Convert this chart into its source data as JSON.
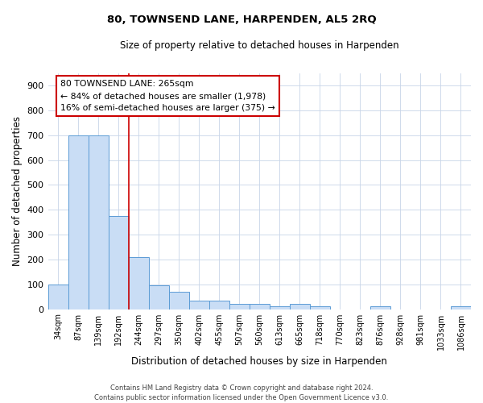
{
  "title": "80, TOWNSEND LANE, HARPENDEN, AL5 2RQ",
  "subtitle": "Size of property relative to detached houses in Harpenden",
  "xlabel": "Distribution of detached houses by size in Harpenden",
  "ylabel": "Number of detached properties",
  "categories": [
    "34sqm",
    "87sqm",
    "139sqm",
    "192sqm",
    "244sqm",
    "297sqm",
    "350sqm",
    "402sqm",
    "455sqm",
    "507sqm",
    "560sqm",
    "613sqm",
    "665sqm",
    "718sqm",
    "770sqm",
    "823sqm",
    "876sqm",
    "928sqm",
    "981sqm",
    "1033sqm",
    "1086sqm"
  ],
  "values": [
    100,
    700,
    700,
    375,
    210,
    95,
    70,
    35,
    35,
    20,
    20,
    10,
    20,
    10,
    0,
    0,
    10,
    0,
    0,
    0,
    10
  ],
  "bar_color": "#c9ddf5",
  "bar_edge_color": "#5b9bd5",
  "property_line_color": "#cc0000",
  "ylim": [
    0,
    950
  ],
  "yticks": [
    0,
    100,
    200,
    300,
    400,
    500,
    600,
    700,
    800,
    900
  ],
  "annotation_title": "80 TOWNSEND LANE: 265sqm",
  "annotation_line1": "← 84% of detached houses are smaller (1,978)",
  "annotation_line2": "16% of semi-detached houses are larger (375) →",
  "annotation_box_color": "#cc0000",
  "footer_line1": "Contains HM Land Registry data © Crown copyright and database right 2024.",
  "footer_line2": "Contains public sector information licensed under the Open Government Licence v3.0.",
  "background_color": "#ffffff",
  "grid_color": "#c8d4e8"
}
